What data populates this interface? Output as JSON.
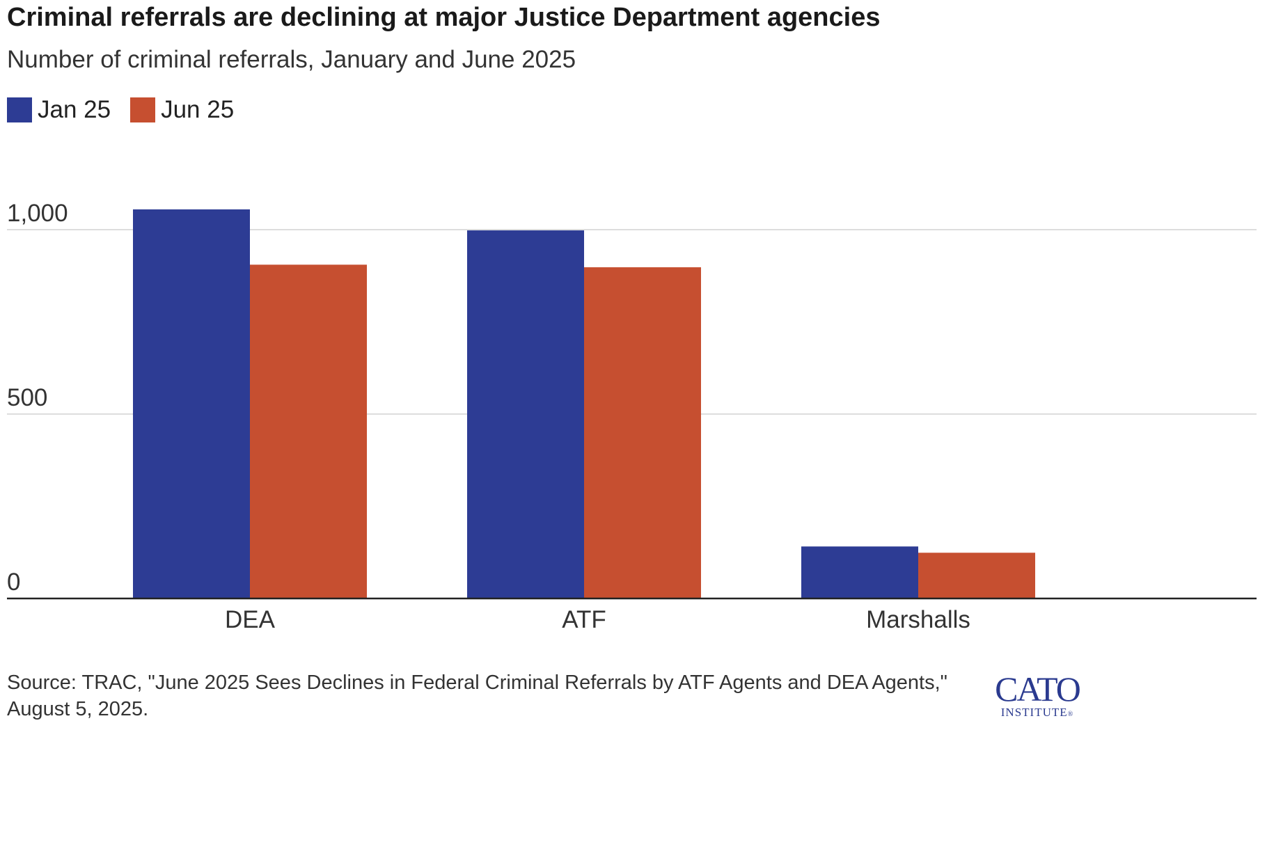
{
  "chart_data": {
    "type": "bar",
    "title": "Criminal referrals are declining at major Justice Department agencies",
    "subtitle": "Number of criminal referrals, January and June 2025",
    "categories": [
      "DEA",
      "ATF",
      "Marshalls"
    ],
    "series": [
      {
        "name": "Jan 25",
        "color": "#2d3c94",
        "values": [
          1055,
          998,
          141
        ]
      },
      {
        "name": "Jun 25",
        "color": "#c64f30",
        "values": [
          905,
          898,
          124
        ]
      }
    ],
    "ylim": [
      0,
      1000
    ],
    "yticks": [
      0,
      500,
      1000
    ],
    "ytick_labels": [
      "0",
      "500",
      "1,000"
    ],
    "xlabel": "",
    "ylabel": "",
    "grid": true,
    "legend_position": "top-left"
  },
  "source": "Source: TRAC, \"June 2025 Sees Declines in Federal Criminal Referrals by ATF Agents and DEA Agents,\" August 5, 2025.",
  "logo": {
    "main": "CATO",
    "sub": "INSTITUTE",
    "mark": "®"
  },
  "colors": {
    "jan": "#2d3c94",
    "jun": "#c64f30",
    "grid": "#dddddd",
    "axis": "#222222"
  }
}
